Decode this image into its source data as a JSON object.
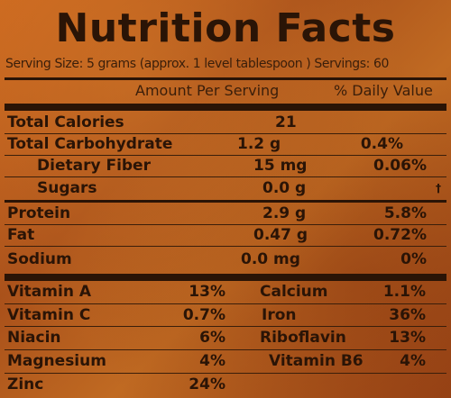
{
  "title": "Nutrition Facts",
  "serving_line": "Serving Size: 5 grams (approx. 1 level tablespoon ) Servings: 60",
  "header": {
    "amount_per_serving": "Amount Per Serving",
    "daily_value": "% Daily Value"
  },
  "nutrients": [
    {
      "name": "Total Calories",
      "amount": "21",
      "pct": ""
    },
    {
      "name": "Total Carbohydrate",
      "amount": "1.2 g",
      "pct": "0.4%"
    },
    {
      "name": "Dietary Fiber",
      "amount": "15 mg",
      "pct": "0.06%"
    },
    {
      "name": "Sugars",
      "amount": "0.0 g",
      "pct": "",
      "mark": "†"
    },
    {
      "name": "Protein",
      "amount": "2.9 g",
      "pct": "5.8%"
    },
    {
      "name": "Fat",
      "amount": "0.47 g",
      "pct": "0.72%"
    },
    {
      "name": "Sodium",
      "amount": "0.0 mg",
      "pct": "0%"
    }
  ],
  "vitamins": [
    {
      "left_name": "Vitamin A",
      "left_pct": "13%",
      "right_name": "Calcium",
      "right_pct": "1.1%"
    },
    {
      "left_name": "Vitamin C",
      "left_pct": "0.7%",
      "right_name": "Iron",
      "right_pct": "36%"
    },
    {
      "left_name": "Niacin",
      "left_pct": "6%",
      "right_name": "Riboflavin",
      "right_pct": "13%"
    },
    {
      "left_name": "Magnesium",
      "left_pct": "4%",
      "right_name": "Vitamin B6",
      "right_pct": "4%"
    },
    {
      "left_name": "Zinc",
      "left_pct": "24%",
      "right_name": "",
      "right_pct": ""
    }
  ],
  "colors": {
    "background": "#b85a1c",
    "ink": "#2a1406"
  }
}
